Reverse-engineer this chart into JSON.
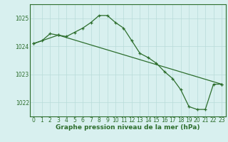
{
  "line1_x": [
    0,
    1,
    2,
    3,
    4,
    5,
    6,
    7,
    8,
    9,
    10,
    11,
    12,
    13,
    14,
    15,
    16,
    17,
    18,
    19,
    20,
    21,
    22,
    23
  ],
  "line1_y": [
    1024.1,
    1024.2,
    1024.45,
    1024.4,
    1024.35,
    1024.5,
    1024.65,
    1024.85,
    1025.1,
    1025.1,
    1024.85,
    1024.65,
    1024.2,
    1023.75,
    1023.6,
    1023.4,
    1023.1,
    1022.85,
    1022.45,
    1021.85,
    1021.75,
    1021.75,
    1022.65,
    1022.65
  ],
  "line2_x": [
    0,
    3,
    23
  ],
  "line2_y": [
    1024.1,
    1024.4,
    1022.65
  ],
  "line_color": "#2d6e2d",
  "bg_color": "#d8f0ef",
  "grid_color": "#b8dbd9",
  "xlabel": "Graphe pression niveau de la mer (hPa)",
  "ylim": [
    1021.5,
    1025.5
  ],
  "xlim": [
    -0.5,
    23.5
  ],
  "yticks": [
    1022,
    1023,
    1024,
    1025
  ],
  "xticks": [
    0,
    1,
    2,
    3,
    4,
    5,
    6,
    7,
    8,
    9,
    10,
    11,
    12,
    13,
    14,
    15,
    16,
    17,
    18,
    19,
    20,
    21,
    22,
    23
  ],
  "xlabel_fontsize": 6.5,
  "tick_fontsize": 5.5,
  "marker_size": 3.0,
  "line_width": 0.9
}
